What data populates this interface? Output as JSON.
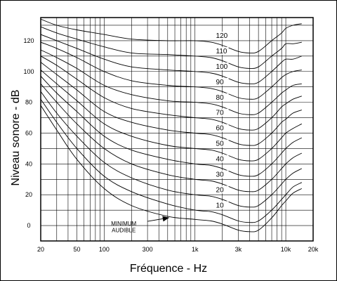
{
  "chart_data": {
    "type": "line",
    "xlabel": "Fréquence - Hz",
    "ylabel": "Niveau sonore - dB",
    "x_scale": "log",
    "xlim": [
      20,
      20000
    ],
    "ylim": [
      -10,
      135
    ],
    "grid": true,
    "x_ticks": [
      {
        "value": 20,
        "label": "20"
      },
      {
        "value": 50,
        "label": "50"
      },
      {
        "value": 100,
        "label": "100"
      },
      {
        "value": 300,
        "label": "300"
      },
      {
        "value": 1000,
        "label": "1k"
      },
      {
        "value": 3000,
        "label": "3k"
      },
      {
        "value": 10000,
        "label": "10k"
      },
      {
        "value": 20000,
        "label": "20k"
      }
    ],
    "y_ticks": [
      0,
      20,
      40,
      60,
      80,
      100,
      120
    ],
    "curve_x": [
      20,
      30,
      50,
      100,
      200,
      500,
      1000,
      1500,
      2000,
      3000,
      4000,
      5000,
      7000,
      9000,
      10000,
      12000,
      15000
    ],
    "series": [
      {
        "label": "MINIMUM AUDIBLE",
        "values": [
          78,
          62,
          43,
          24,
          13,
          6,
          4,
          3,
          1,
          -3,
          -4,
          -3,
          5,
          13,
          16,
          21,
          24
        ]
      },
      {
        "label": "10",
        "values": [
          82,
          67,
          50,
          32,
          22,
          14,
          10,
          9,
          7,
          3,
          2,
          3,
          10,
          17,
          20,
          25,
          28
        ]
      },
      {
        "label": "20",
        "values": [
          87,
          73,
          58,
          41,
          31,
          23,
          20,
          19,
          17,
          13,
          12,
          13,
          20,
          27,
          30,
          34,
          37
        ]
      },
      {
        "label": "30",
        "values": [
          92,
          80,
          66,
          50,
          40,
          33,
          30,
          29,
          27,
          23,
          22,
          23,
          30,
          37,
          40,
          44,
          47
        ]
      },
      {
        "label": "40",
        "values": [
          97,
          86,
          74,
          58,
          49,
          43,
          40,
          39,
          37,
          33,
          32,
          33,
          40,
          47,
          50,
          54,
          57
        ]
      },
      {
        "label": "50",
        "values": [
          101,
          92,
          81,
          66,
          58,
          52,
          50,
          49,
          47,
          43,
          42,
          43,
          50,
          57,
          60,
          63,
          66
        ]
      },
      {
        "label": "60",
        "values": [
          106,
          98,
          88,
          74,
          67,
          62,
          60,
          59,
          57,
          53,
          52,
          53,
          60,
          67,
          69,
          73,
          75
        ]
      },
      {
        "label": "70",
        "values": [
          110,
          104,
          95,
          83,
          76,
          72,
          70,
          69,
          67,
          63,
          62,
          63,
          70,
          77,
          79,
          82,
          84
        ]
      },
      {
        "label": "80",
        "values": [
          114,
          109,
          102,
          91,
          85,
          81,
          80,
          79,
          77,
          73,
          72,
          73,
          80,
          86,
          88,
          91,
          92
        ]
      },
      {
        "label": "90",
        "values": [
          119,
          115,
          109,
          100,
          94,
          91,
          90,
          89,
          87,
          83,
          82,
          83,
          90,
          96,
          98,
          100,
          101
        ]
      },
      {
        "label": "100",
        "values": [
          124,
          120,
          115,
          108,
          103,
          101,
          100,
          99,
          97,
          93,
          92,
          93,
          100,
          106,
          108,
          108,
          110
        ]
      },
      {
        "label": "110",
        "values": [
          129,
          125,
          121,
          116,
          112,
          111,
          110,
          109,
          107,
          103,
          102,
          103,
          110,
          115,
          118,
          118,
          119
        ]
      },
      {
        "label": "120",
        "values": [
          134,
          130,
          127,
          124,
          121,
          120,
          120,
          119,
          117,
          113,
          112,
          113,
          120,
          125,
          128,
          130,
          131
        ]
      }
    ],
    "annotations": [
      {
        "text": "MINIMUM",
        "x": 280,
        "y": 1.5
      },
      {
        "text": "AUDIBLE",
        "x": 280,
        "y": -3
      }
    ]
  }
}
